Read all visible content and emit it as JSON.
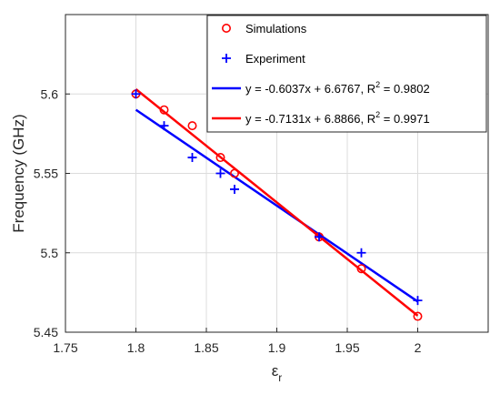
{
  "chart_data": {
    "type": "scatter",
    "xlabel": "ε",
    "xlabel_sub": "r",
    "ylabel": "Frequency (GHz)",
    "xlim": [
      1.75,
      2.05
    ],
    "ylim": [
      5.45,
      5.65
    ],
    "xticks": [
      "1.75",
      "1.8",
      "1.85",
      "1.9",
      "1.95",
      "2"
    ],
    "yticks": [
      "5.45",
      "5.5",
      "5.55",
      "5.6"
    ],
    "grid": true,
    "legend_position": "top-right",
    "series": [
      {
        "name": "Simulations",
        "marker": "circle",
        "color": "#ff0000",
        "x": [
          1.8,
          1.82,
          1.84,
          1.86,
          1.87,
          1.93,
          1.96,
          2.0
        ],
        "y": [
          5.6,
          5.59,
          5.58,
          5.56,
          5.55,
          5.51,
          5.49,
          5.46
        ]
      },
      {
        "name": "Experiment",
        "marker": "plus",
        "color": "#0000ff",
        "x": [
          1.8,
          1.82,
          1.84,
          1.86,
          1.87,
          1.93,
          1.96,
          2.0
        ],
        "y": [
          5.6,
          5.58,
          5.56,
          5.55,
          5.54,
          5.51,
          5.5,
          5.47
        ]
      }
    ],
    "fits": [
      {
        "label": "y = -0.6037x + 6.6767, R",
        "sup": "2",
        "label_end": " = 0.9802",
        "color": "#0000ff",
        "slope": -0.6037,
        "intercept": 6.6767,
        "x_range": [
          1.8,
          2.0
        ]
      },
      {
        "label": "y = -0.7131x + 6.8866, R",
        "sup": "2",
        "label_end": " = 0.9971",
        "color": "#ff0000",
        "slope": -0.7131,
        "intercept": 6.8866,
        "x_range": [
          1.8,
          2.0
        ]
      }
    ]
  }
}
